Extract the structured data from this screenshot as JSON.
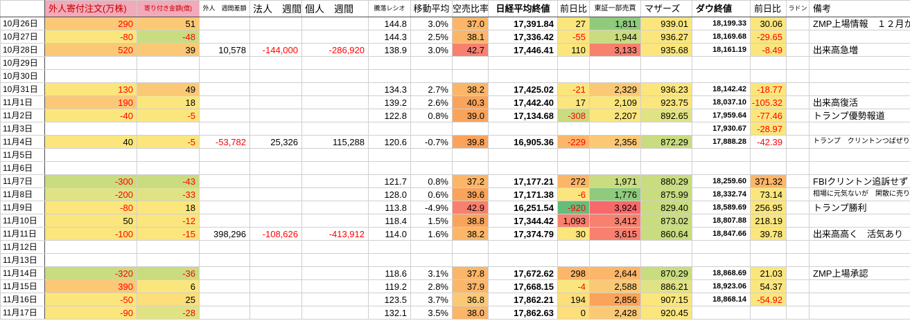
{
  "app": "stock-diary-spreadsheet",
  "palette": {
    "g": "#63be7b",
    "g2": "#8fca7d",
    "yg": "#c9dc80",
    "yg2": "#e0e383",
    "y": "#fbe67d",
    "y2": "#fcde7a",
    "o1": "#fbc976",
    "o2": "#fbb669",
    "o3": "#faa35b",
    "s": "#f8806f",
    "rr": "#f8696b",
    "header_pink": "#f2a9b9",
    "header_text_red": "#c00000",
    "negative_red": "#ff0000"
  },
  "columns": [
    {
      "key": "date",
      "label": "",
      "w": 64,
      "hcls": "date",
      "cls": "date"
    },
    {
      "key": "foreign-open-order",
      "label": "外人寄付注文(万株)",
      "w": 133,
      "hcls": "ph hl",
      "cls": "num"
    },
    {
      "key": "opening-amount",
      "label": "寄り付き金額(億)",
      "w": 90,
      "hcls": "ph ht",
      "cls": "num"
    },
    {
      "key": "foreign-weekly",
      "label": "外人　週間差額",
      "w": 73,
      "hcls": "ht",
      "cls": "num"
    },
    {
      "key": "corporate-weekly",
      "label": "法人　週間",
      "w": 75,
      "hcls": "hb",
      "cls": "num"
    },
    {
      "key": "individual-weekly",
      "label": "個人　週間",
      "w": 96,
      "hcls": "hb",
      "cls": "num"
    },
    {
      "key": "adv-decline-ratio",
      "label": "騰落レシオ",
      "w": 61,
      "hcls": "ht",
      "cls": "num"
    },
    {
      "key": "moving-average",
      "label": "移動平均",
      "w": 60,
      "hcls": "",
      "cls": "num"
    },
    {
      "key": "short-sell-ratio",
      "label": "空売比率",
      "w": 52,
      "hcls": "",
      "cls": "num"
    },
    {
      "key": "nikkei-close",
      "label": "日経平均終値",
      "w": 100,
      "hcls": "hbold",
      "cls": "num nk"
    },
    {
      "key": "nikkei-change",
      "label": "前日比",
      "w": 46,
      "hcls": "",
      "cls": "num"
    },
    {
      "key": "tse1-volume",
      "label": "東証一部売買",
      "w": 74,
      "hcls": "hs",
      "cls": "num"
    },
    {
      "key": "mothers-index",
      "label": "マザーズ",
      "w": 74,
      "hcls": "hl",
      "cls": "num"
    },
    {
      "key": "dow-close",
      "label": "ダウ終値",
      "w": 84,
      "hcls": "hbold hl",
      "cls": "num dw"
    },
    {
      "key": "dow-change",
      "label": "前日比",
      "w": 52,
      "hcls": "hl",
      "cls": "num"
    },
    {
      "key": "radon",
      "label": "ラドン",
      "w": 33,
      "hcls": "ht",
      "cls": "num"
    },
    {
      "key": "note",
      "label": "備考",
      "w": 146,
      "hcls": "hl",
      "cls": "note"
    }
  ],
  "strong_top_rows": [
    2,
    5,
    9,
    12,
    16,
    19
  ],
  "rows": [
    {
      "date": "10月26日",
      "cells": [
        [
          "290",
          "o1",
          "r"
        ],
        [
          "51",
          "o1",
          ""
        ],
        null,
        null,
        null,
        [
          "144.8",
          "",
          ""
        ],
        [
          "3.0%",
          "",
          ""
        ],
        [
          "37.0",
          "o2",
          ""
        ],
        [
          "17,391.84",
          "",
          ""
        ],
        [
          "27",
          "y",
          ""
        ],
        [
          "1,811",
          "g2",
          ""
        ],
        [
          "939.01",
          "y",
          ""
        ],
        [
          "18,199.33",
          "",
          ""
        ],
        [
          "30.06",
          "y",
          ""
        ],
        null,
        [
          "ZMP上場情報　１２月か",
          "",
          ""
        ]
      ]
    },
    {
      "date": "10月27日",
      "cells": [
        [
          "-80",
          "y",
          "r"
        ],
        [
          "-48",
          "yg",
          "r"
        ],
        null,
        null,
        null,
        [
          "144.3",
          "",
          ""
        ],
        [
          "2.5%",
          "",
          ""
        ],
        [
          "38.1",
          "o2",
          ""
        ],
        [
          "17,336.42",
          "",
          ""
        ],
        [
          "-55",
          "y",
          "r"
        ],
        [
          "1,944",
          "yg",
          ""
        ],
        [
          "936.27",
          "y",
          ""
        ],
        [
          "18,169.68",
          "",
          ""
        ],
        [
          "-29.65",
          "y",
          "r"
        ],
        null,
        null
      ]
    },
    {
      "date": "10月28日",
      "cells": [
        [
          "520",
          "o1",
          "r"
        ],
        [
          "39",
          "o1",
          ""
        ],
        [
          "10,578",
          "",
          ""
        ],
        [
          "-144,000",
          "",
          "r"
        ],
        [
          "-286,920",
          "",
          "r"
        ],
        [
          "138.9",
          "",
          ""
        ],
        [
          "3.0%",
          "",
          ""
        ],
        [
          "42.7",
          "s",
          ""
        ],
        [
          "17,446.41",
          "",
          ""
        ],
        [
          "110",
          "y",
          ""
        ],
        [
          "3,133",
          "s",
          ""
        ],
        [
          "935.68",
          "y",
          ""
        ],
        [
          "18,161.19",
          "",
          ""
        ],
        [
          "-8.49",
          "y",
          "r"
        ],
        null,
        [
          "出来高急増",
          "",
          ""
        ]
      ]
    },
    {
      "date": "10月29日",
      "cells": [
        null,
        null,
        null,
        null,
        null,
        null,
        null,
        null,
        null,
        null,
        null,
        null,
        null,
        null,
        null,
        null
      ]
    },
    {
      "date": "10月30日",
      "cells": [
        null,
        null,
        null,
        null,
        null,
        null,
        null,
        null,
        null,
        null,
        null,
        null,
        null,
        null,
        null,
        null
      ]
    },
    {
      "date": "10月31日",
      "cells": [
        [
          "130",
          "y",
          "r"
        ],
        [
          "49",
          "o1",
          ""
        ],
        null,
        null,
        null,
        [
          "134.3",
          "",
          ""
        ],
        [
          "2.7%",
          "",
          ""
        ],
        [
          "38.2",
          "o2",
          ""
        ],
        [
          "17,425.02",
          "",
          ""
        ],
        [
          "-21",
          "y",
          "r"
        ],
        [
          "2,329",
          "o1",
          ""
        ],
        [
          "936.23",
          "y",
          ""
        ],
        [
          "18,142.42",
          "",
          ""
        ],
        [
          "-18.77",
          "y",
          "r"
        ],
        null,
        null
      ]
    },
    {
      "date": "11月1日",
      "cells": [
        [
          "190",
          "o1",
          "r"
        ],
        [
          "18",
          "y",
          ""
        ],
        null,
        null,
        null,
        [
          "139.2",
          "",
          ""
        ],
        [
          "2.6%",
          "",
          ""
        ],
        [
          "40.3",
          "o3",
          ""
        ],
        [
          "17,442.40",
          "",
          ""
        ],
        [
          "17",
          "y",
          ""
        ],
        [
          "2,109",
          "y",
          ""
        ],
        [
          "923.75",
          "y",
          ""
        ],
        [
          "18,037.10",
          "",
          ""
        ],
        [
          "-105.32",
          "y",
          "r"
        ],
        null,
        [
          "出来高復活",
          "",
          ""
        ]
      ]
    },
    {
      "date": "11月2日",
      "cells": [
        [
          "-40",
          "y",
          "r"
        ],
        [
          "-5",
          "y",
          "r"
        ],
        null,
        null,
        null,
        [
          "122.8",
          "",
          ""
        ],
        [
          "0.8%",
          "",
          ""
        ],
        [
          "39.0",
          "o3",
          ""
        ],
        [
          "17,134.68",
          "",
          ""
        ],
        [
          "-308",
          "yg",
          "r"
        ],
        [
          "2,207",
          "y",
          ""
        ],
        [
          "892.65",
          "yg2",
          ""
        ],
        [
          "17,959.64",
          "",
          ""
        ],
        [
          "-77.46",
          "y",
          "r"
        ],
        null,
        [
          "トランプ優勢報道",
          "",
          ""
        ]
      ]
    },
    {
      "date": "11月3日",
      "cells": [
        null,
        null,
        null,
        null,
        null,
        null,
        null,
        null,
        null,
        null,
        null,
        null,
        [
          "17,930.67",
          "",
          ""
        ],
        [
          "-28.97",
          "y",
          "r"
        ],
        null,
        null
      ]
    },
    {
      "date": "11月4日",
      "cells": [
        [
          "40",
          "y",
          ""
        ],
        [
          "-5",
          "y",
          "r"
        ],
        [
          "-53,782",
          "",
          "r"
        ],
        [
          "25,326",
          "",
          ""
        ],
        [
          "115,288",
          "",
          ""
        ],
        [
          "120.6",
          "",
          ""
        ],
        [
          "-0.7%",
          "",
          ""
        ],
        [
          "39.8",
          "o3",
          ""
        ],
        [
          "16,905.36",
          "",
          ""
        ],
        [
          "-229",
          "o2",
          "r"
        ],
        [
          "2,356",
          "o1",
          ""
        ],
        [
          "872.29",
          "yg",
          ""
        ],
        [
          "17,888.28",
          "",
          ""
        ],
        [
          "-42.39",
          "",
          "r"
        ],
        null,
        [
          "トランプ　クリントンつばぜり合い",
          "",
          "s"
        ]
      ]
    },
    {
      "date": "11月5日",
      "cells": [
        null,
        null,
        null,
        null,
        null,
        null,
        null,
        null,
        null,
        null,
        null,
        null,
        null,
        null,
        null,
        null
      ]
    },
    {
      "date": "11月6日",
      "cells": [
        null,
        null,
        null,
        null,
        null,
        null,
        null,
        null,
        null,
        null,
        null,
        null,
        null,
        null,
        null,
        null
      ]
    },
    {
      "date": "11月7日",
      "cells": [
        [
          "-300",
          "yg",
          "r"
        ],
        [
          "-43",
          "yg",
          "r"
        ],
        null,
        null,
        null,
        [
          "121.7",
          "",
          ""
        ],
        [
          "0.8%",
          "",
          ""
        ],
        [
          "37.2",
          "o2",
          ""
        ],
        [
          "17,177.21",
          "",
          ""
        ],
        [
          "272",
          "o2",
          ""
        ],
        [
          "1,971",
          "yg",
          ""
        ],
        [
          "880.29",
          "yg",
          ""
        ],
        [
          "18,259.60",
          "",
          ""
        ],
        [
          "371.32",
          "o2",
          ""
        ],
        null,
        [
          "FBIクリントン追訴せず",
          "",
          ""
        ]
      ]
    },
    {
      "date": "11月8日",
      "cells": [
        [
          "-200",
          "yg2",
          "r"
        ],
        [
          "-33",
          "yg2",
          "r"
        ],
        null,
        null,
        null,
        [
          "128.0",
          "",
          ""
        ],
        [
          "0.6%",
          "",
          ""
        ],
        [
          "39.6",
          "o3",
          ""
        ],
        [
          "17,171.38",
          "",
          ""
        ],
        [
          "-6",
          "y",
          "r"
        ],
        [
          "1,776",
          "g2",
          ""
        ],
        [
          "875.99",
          "yg",
          ""
        ],
        [
          "18,332.74",
          "",
          ""
        ],
        [
          "73.14",
          "y",
          ""
        ],
        null,
        [
          "相場に元気ないが　閑散に売りなし？",
          "",
          "s"
        ]
      ]
    },
    {
      "date": "11月9日",
      "cells": [
        [
          "-80",
          "y",
          "r"
        ],
        [
          "18",
          "y",
          ""
        ],
        null,
        null,
        null,
        [
          "113.8",
          "",
          ""
        ],
        [
          "-4.9%",
          "",
          ""
        ],
        [
          "42.9",
          "s",
          ""
        ],
        [
          "16,251.54",
          "",
          ""
        ],
        [
          "-920",
          "g",
          "r"
        ],
        [
          "3,924",
          "rr",
          ""
        ],
        [
          "829.40",
          "yg",
          ""
        ],
        [
          "18,589.69",
          "",
          ""
        ],
        [
          "256.95",
          "y",
          ""
        ],
        null,
        [
          "トランプ勝利",
          "",
          ""
        ]
      ]
    },
    {
      "date": "11月10日",
      "cells": [
        [
          "50",
          "y",
          ""
        ],
        [
          "-12",
          "y",
          "r"
        ],
        null,
        null,
        null,
        [
          "118.4",
          "",
          ""
        ],
        [
          "1.5%",
          "",
          ""
        ],
        [
          "38.8",
          "o3",
          ""
        ],
        [
          "17,344.42",
          "",
          ""
        ],
        [
          "1,093",
          "s",
          ""
        ],
        [
          "3,412",
          "s",
          ""
        ],
        [
          "873.02",
          "yg",
          ""
        ],
        [
          "18,807.88",
          "",
          ""
        ],
        [
          "218.19",
          "y",
          ""
        ],
        null,
        null
      ]
    },
    {
      "date": "11月11日",
      "cells": [
        [
          "-100",
          "y",
          "r"
        ],
        [
          "-15",
          "y",
          "r"
        ],
        [
          "398,296",
          "",
          ""
        ],
        [
          "-108,626",
          "",
          "r"
        ],
        [
          "-413,912",
          "",
          "r"
        ],
        [
          "114.0",
          "",
          ""
        ],
        [
          "1.6%",
          "",
          ""
        ],
        [
          "38.2",
          "o2",
          ""
        ],
        [
          "17,374.79",
          "",
          ""
        ],
        [
          "30",
          "y",
          ""
        ],
        [
          "3,615",
          "s",
          ""
        ],
        [
          "860.64",
          "yg",
          ""
        ],
        [
          "18,847.66",
          "",
          ""
        ],
        [
          "39.78",
          "y",
          ""
        ],
        null,
        [
          "出来高高く　活気あり",
          "",
          ""
        ]
      ]
    },
    {
      "date": "11月12日",
      "cells": [
        null,
        null,
        null,
        null,
        null,
        null,
        null,
        null,
        null,
        null,
        null,
        null,
        null,
        null,
        null,
        null
      ]
    },
    {
      "date": "11月13日",
      "cells": [
        null,
        null,
        null,
        null,
        null,
        null,
        null,
        null,
        null,
        null,
        null,
        null,
        null,
        null,
        null,
        null
      ]
    },
    {
      "date": "11月14日",
      "cells": [
        [
          "-320",
          "yg",
          "r"
        ],
        [
          "-36",
          "yg",
          "r"
        ],
        null,
        null,
        null,
        [
          "118.6",
          "",
          ""
        ],
        [
          "3.1%",
          "",
          ""
        ],
        [
          "37.8",
          "o2",
          ""
        ],
        [
          "17,672.62",
          "",
          ""
        ],
        [
          "298",
          "o2",
          ""
        ],
        [
          "2,644",
          "o2",
          ""
        ],
        [
          "870.29",
          "yg",
          ""
        ],
        [
          "18,868.69",
          "",
          ""
        ],
        [
          "21.03",
          "y",
          ""
        ],
        null,
        [
          "ZMP上場承認",
          "",
          ""
        ]
      ]
    },
    {
      "date": "11月15日",
      "cells": [
        [
          "390",
          "o1",
          "r"
        ],
        [
          "6",
          "y",
          ""
        ],
        null,
        null,
        null,
        [
          "119.2",
          "",
          ""
        ],
        [
          "2.8%",
          "",
          ""
        ],
        [
          "37.9",
          "o2",
          ""
        ],
        [
          "17,668.15",
          "",
          ""
        ],
        [
          "-4",
          "y",
          "r"
        ],
        [
          "2,588",
          "o1",
          ""
        ],
        [
          "886.21",
          "yg2",
          ""
        ],
        [
          "18,923.06",
          "",
          ""
        ],
        [
          "54.37",
          "y",
          ""
        ],
        null,
        null
      ]
    },
    {
      "date": "11月16日",
      "cells": [
        [
          "-50",
          "y",
          "r"
        ],
        [
          "25",
          "y2",
          ""
        ],
        null,
        null,
        null,
        [
          "123.5",
          "",
          ""
        ],
        [
          "3.7%",
          "",
          ""
        ],
        [
          "36.8",
          "o1",
          ""
        ],
        [
          "17,862.21",
          "",
          ""
        ],
        [
          "194",
          "y2",
          ""
        ],
        [
          "2,856",
          "o3",
          ""
        ],
        [
          "907.15",
          "y",
          ""
        ],
        [
          "18,868.14",
          "",
          ""
        ],
        [
          "-54.92",
          "y",
          "r"
        ],
        null,
        null
      ]
    },
    {
      "date": "11月17日",
      "cells": [
        [
          "-90",
          "y",
          "r"
        ],
        [
          "-28",
          "yg2",
          "r"
        ],
        null,
        null,
        null,
        [
          "132.1",
          "",
          ""
        ],
        [
          "3.5%",
          "",
          ""
        ],
        [
          "38.0",
          "o2",
          ""
        ],
        [
          "17,862.63",
          "",
          ""
        ],
        [
          "0",
          "y2",
          ""
        ],
        [
          "2,428",
          "o1",
          ""
        ],
        [
          "920.45",
          "y",
          ""
        ],
        null,
        null,
        null,
        null
      ]
    }
  ]
}
